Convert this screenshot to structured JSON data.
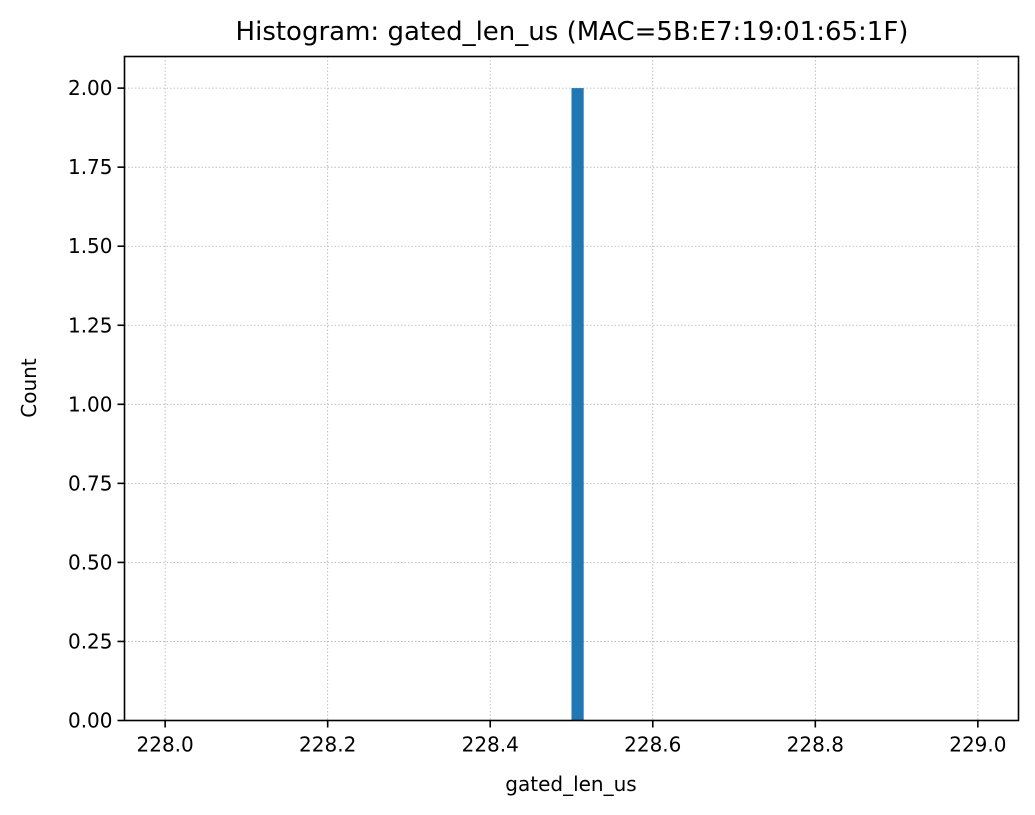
{
  "chart_data": {
    "type": "bar",
    "title": "Histogram: gated_len_us (MAC=5B:E7:19:01:65:1F)",
    "xlabel": "gated_len_us",
    "ylabel": "Count",
    "xlim": [
      227.95,
      229.05
    ],
    "ylim": [
      0,
      2.1
    ],
    "xticks": [
      228.0,
      228.2,
      228.4,
      228.6,
      228.8,
      229.0
    ],
    "xtick_labels": [
      "228.0",
      "228.2",
      "228.4",
      "228.6",
      "228.8",
      "229.0"
    ],
    "yticks": [
      0,
      0.25,
      0.5,
      0.75,
      1.0,
      1.25,
      1.5,
      1.75,
      2.0
    ],
    "ytick_labels": [
      "0.00",
      "0.25",
      "0.50",
      "0.75",
      "1.00",
      "1.25",
      "1.50",
      "1.75",
      "2.00"
    ],
    "bins": [
      {
        "x0": 228.5,
        "x1": 228.515,
        "count": 2
      }
    ],
    "grid": true,
    "colors": {
      "bar": "#1f77b4",
      "grid": "#b0b0b0",
      "axis": "#000000"
    }
  }
}
